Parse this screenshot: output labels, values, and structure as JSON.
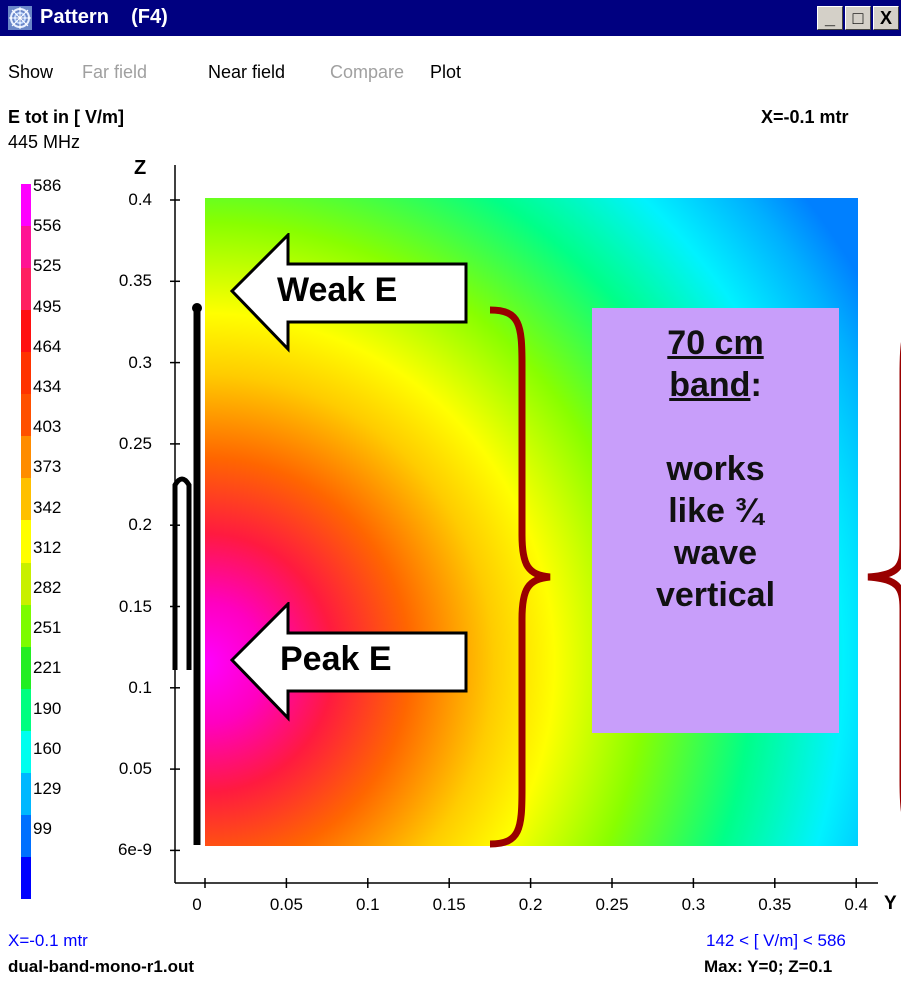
{
  "window": {
    "title": "Pattern    (F4)",
    "buttons": [
      "_",
      "□",
      "X"
    ]
  },
  "menu": [
    {
      "label": "Show",
      "enabled": true
    },
    {
      "label": "Far field",
      "enabled": false
    },
    {
      "label": "Near field",
      "enabled": true
    },
    {
      "label": "Compare",
      "enabled": false
    },
    {
      "label": "Plot",
      "enabled": true
    }
  ],
  "plot": {
    "quantity": "E tot in [ V/m]",
    "frequency": "445 MHz",
    "slice": "X=-0.1 mtr",
    "z_axis_label": "Z",
    "y_axis_label": "Y",
    "z_ticks": [
      "0.4",
      "0.35",
      "0.3",
      "0.25",
      "0.2",
      "0.15",
      "0.1",
      "0.05",
      "6e-9"
    ],
    "y_ticks": [
      "0",
      "0.05",
      "0.1",
      "0.15",
      "0.2",
      "0.25",
      "0.3",
      "0.35",
      "0.4"
    ],
    "legend_values": [
      "586",
      "556",
      "525",
      "495",
      "464",
      "434",
      "403",
      "373",
      "342",
      "312",
      "282",
      "251",
      "221",
      "190",
      "160",
      "129",
      "99"
    ],
    "legend_colors": [
      "#ff00ff",
      "#ff1493",
      "#ff2060",
      "#ff1010",
      "#ff3300",
      "#ff5000",
      "#ff8c00",
      "#ffc000",
      "#ffff00",
      "#c8f000",
      "#7cfc00",
      "#22ee22",
      "#00ff80",
      "#00ffee",
      "#00b8ff",
      "#0070ff",
      "#0000ff"
    ]
  },
  "annotations": {
    "weak": "Weak E",
    "peak": "Peak E",
    "band_title_1": "70 cm",
    "band_title_2": "band",
    "band_colon": ":",
    "band_desc": [
      "works",
      "like ¾",
      "wave",
      "vertical"
    ]
  },
  "footer": {
    "slice": "X=-0.1 mtr",
    "range": "142 < [ V/m] < 586",
    "file": "dual-band-mono-r1.out",
    "max": "Max: Y=0; Z=0.1"
  },
  "chart_data": {
    "type": "heatmap",
    "title": "E tot in [ V/m]",
    "xlabel": "Y",
    "ylabel": "Z",
    "xlim": [
      0,
      0.4
    ],
    "ylim": [
      0,
      0.4
    ],
    "color_range": [
      142,
      586
    ],
    "colorbar_ticks": [
      586,
      556,
      525,
      495,
      464,
      434,
      403,
      373,
      342,
      312,
      282,
      251,
      221,
      190,
      160,
      129,
      99
    ],
    "max_location": {
      "Y": 0,
      "Z": 0.1
    }
  }
}
